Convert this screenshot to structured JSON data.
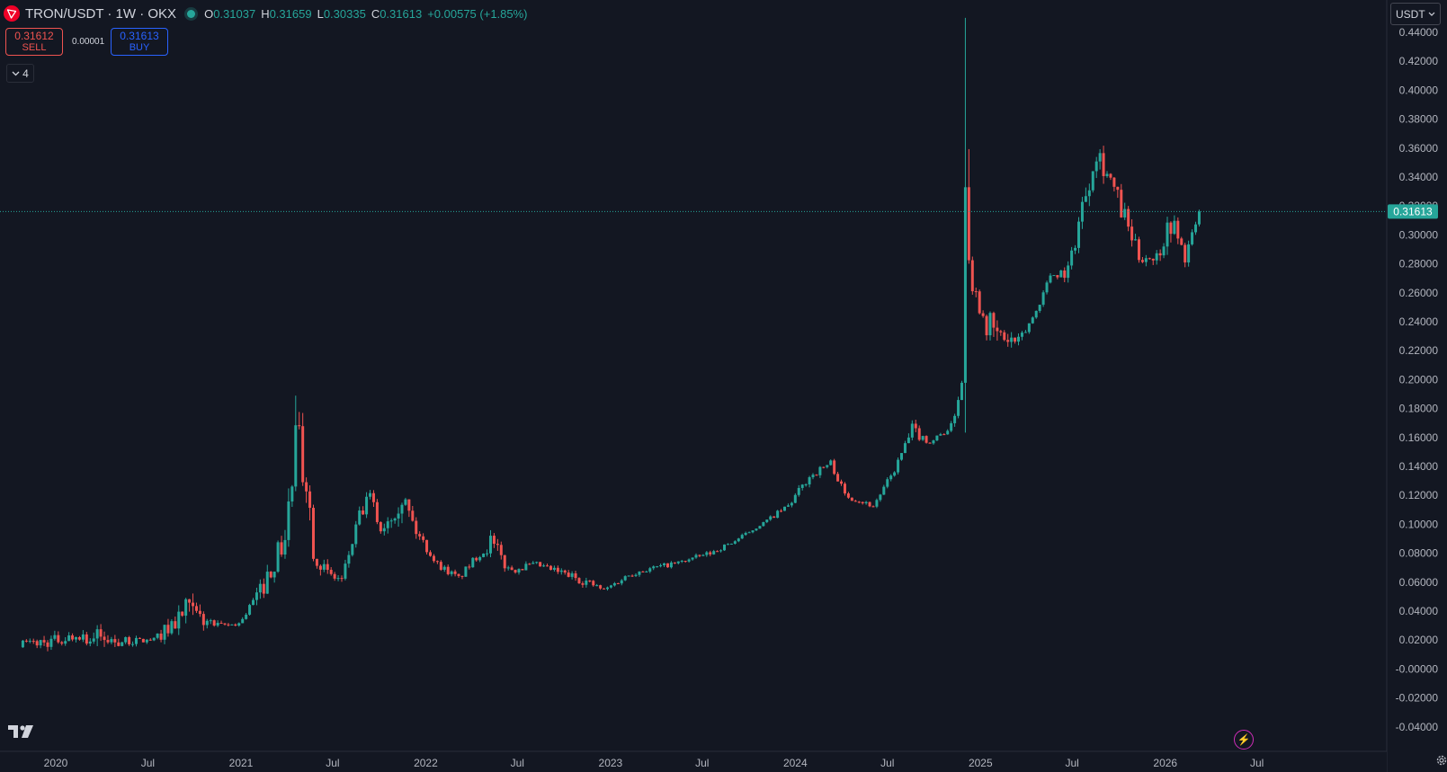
{
  "header": {
    "symbol": "TRON/USDT · 1W · OKX",
    "ohlc": [
      {
        "key": "O",
        "value": "0.31037"
      },
      {
        "key": "H",
        "value": "0.31659"
      },
      {
        "key": "L",
        "value": "0.30335"
      },
      {
        "key": "C",
        "value": "0.31613"
      }
    ],
    "change": "+0.00575 (+1.85%)"
  },
  "trade": {
    "sell_price": "0.31612",
    "sell_label": "SELL",
    "buy_price": "0.31613",
    "buy_label": "BUY",
    "spread": "0.00001"
  },
  "indicators": {
    "collapse_count": "4"
  },
  "currency": {
    "selected": "USDT"
  },
  "last_price_label": "0.31613",
  "colors": {
    "background": "#131722",
    "up": "#26a69a",
    "down": "#ef5350",
    "axis_text": "#b2b5be",
    "grid_line": "#2a2e39",
    "sell": "#ef5350",
    "buy": "#2962ff",
    "flash": "#d02cb8"
  },
  "icons": {
    "symbol_logo": "tron-icon",
    "collapse": "chevron-down-icon",
    "currency_dropdown": "chevron-down-icon",
    "brand": "tradingview-logo",
    "flash": "lightning-icon",
    "settings": "gear-icon"
  },
  "chart_data": {
    "type": "candlestick",
    "interval": "1W",
    "y_ticks": [
      "0.44000",
      "0.42000",
      "0.40000",
      "0.38000",
      "0.36000",
      "0.34000",
      "0.32000",
      "0.30000",
      "0.28000",
      "0.26000",
      "0.24000",
      "0.22000",
      "0.20000",
      "0.18000",
      "0.16000",
      "0.14000",
      "0.12000",
      "0.10000",
      "0.08000",
      "0.06000",
      "0.04000",
      "0.02000",
      "-0.00000",
      "-0.02000",
      "-0.04000"
    ],
    "x_ticks": [
      "2020",
      "Jul",
      "2021",
      "Jul",
      "2022",
      "Jul",
      "2023",
      "Jul",
      "2024",
      "Jul",
      "2025",
      "Jul",
      "2026",
      "Jul"
    ],
    "ylim": [
      -0.04,
      0.44
    ],
    "grid": false,
    "last_price": 0.31613,
    "anchors": [
      [
        "2019-10-28",
        0.015,
        0.02
      ],
      [
        "2019-12-23",
        0.014,
        0.024
      ],
      [
        "2020-02-17",
        0.02,
        0.026
      ],
      [
        "2020-03-16",
        0.011,
        0.03
      ],
      [
        "2020-05-18",
        0.016,
        0.022
      ],
      [
        "2020-07-13",
        0.018,
        0.022
      ],
      [
        "2020-09-14",
        0.028,
        0.05
      ],
      [
        "2020-11-16",
        0.027,
        0.032
      ],
      [
        "2020-12-28",
        0.03,
        0.033
      ],
      [
        "2021-02-08",
        0.047,
        0.06
      ],
      [
        "2021-03-29",
        0.08,
        0.1
      ],
      [
        "2021-04-19",
        0.12,
        0.18
      ],
      [
        "2021-05-10",
        0.12,
        0.155
      ],
      [
        "2021-05-24",
        0.075,
        0.09
      ],
      [
        "2021-06-21",
        0.06,
        0.07
      ],
      [
        "2021-07-19",
        0.058,
        0.065
      ],
      [
        "2021-08-23",
        0.1,
        0.11
      ],
      [
        "2021-09-13",
        0.113,
        0.125
      ],
      [
        "2021-10-04",
        0.092,
        0.1
      ],
      [
        "2021-11-15",
        0.11,
        0.13
      ],
      [
        "2021-12-13",
        0.09,
        0.1
      ],
      [
        "2022-01-24",
        0.07,
        0.075
      ],
      [
        "2022-03-07",
        0.06,
        0.065
      ],
      [
        "2022-04-11",
        0.075,
        0.08
      ],
      [
        "2022-05-09",
        0.08,
        0.095
      ],
      [
        "2022-06-13",
        0.065,
        0.073
      ],
      [
        "2022-08-08",
        0.07,
        0.074
      ],
      [
        "2022-11-07",
        0.058,
        0.065
      ],
      [
        "2022-12-19",
        0.053,
        0.056
      ],
      [
        "2023-02-13",
        0.064,
        0.069
      ],
      [
        "2023-05-15",
        0.072,
        0.075
      ],
      [
        "2023-07-17",
        0.078,
        0.082
      ],
      [
        "2023-09-04",
        0.087,
        0.09
      ],
      [
        "2023-10-30",
        0.1,
        0.102
      ],
      [
        "2023-12-18",
        0.11,
        0.115
      ],
      [
        "2024-01-29",
        0.13,
        0.136
      ],
      [
        "2024-03-11",
        0.14,
        0.145
      ],
      [
        "2024-04-08",
        0.118,
        0.123
      ],
      [
        "2024-06-03",
        0.111,
        0.114
      ],
      [
        "2024-07-15",
        0.135,
        0.14
      ],
      [
        "2024-08-19",
        0.16,
        0.17
      ],
      [
        "2024-09-23",
        0.155,
        0.158
      ],
      [
        "2024-11-04",
        0.165,
        0.17
      ],
      [
        "2024-11-25",
        0.19,
        0.21
      ],
      [
        "2024-12-02",
        0.3,
        0.45
      ],
      [
        "2024-12-16",
        0.26,
        0.27
      ],
      [
        "2025-01-13",
        0.23,
        0.25
      ],
      [
        "2025-02-03",
        0.22,
        0.24
      ],
      [
        "2025-03-17",
        0.22,
        0.23
      ],
      [
        "2025-04-21",
        0.245,
        0.25
      ],
      [
        "2025-05-19",
        0.27,
        0.275
      ],
      [
        "2025-06-23",
        0.27,
        0.28
      ],
      [
        "2025-07-21",
        0.31,
        0.33
      ],
      [
        "2025-08-18",
        0.35,
        0.37
      ],
      [
        "2025-09-15",
        0.33,
        0.345
      ],
      [
        "2025-10-13",
        0.3,
        0.32
      ],
      [
        "2025-11-10",
        0.28,
        0.29
      ],
      [
        "2025-12-15",
        0.28,
        0.29
      ],
      [
        "2026-01-12",
        0.3,
        0.32
      ],
      [
        "2026-02-09",
        0.28,
        0.29
      ],
      [
        "2026-03-09",
        0.31,
        0.316
      ]
    ]
  }
}
